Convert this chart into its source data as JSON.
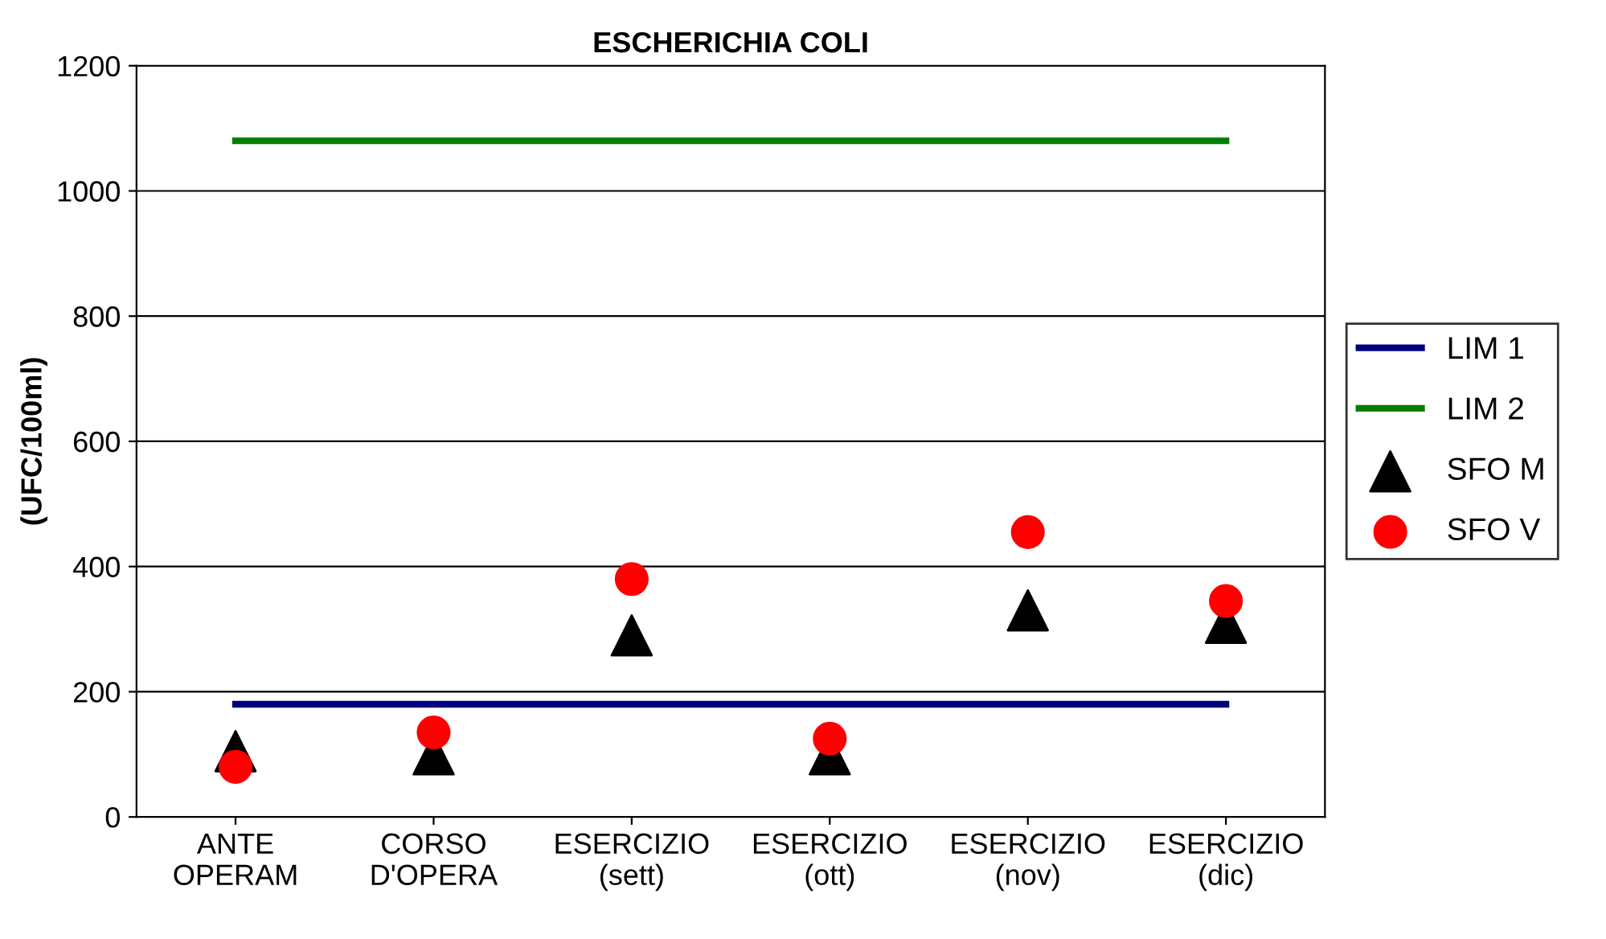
{
  "chart_data": {
    "type": "scatter",
    "title": "ESCHERICHIA COLI",
    "ylabel": "(UFC/100ml)",
    "categories": [
      "ANTE\nOPERAM",
      "CORSO\nD'OPERA",
      "ESERCIZIO\n(sett)",
      "ESERCIZIO\n(ott)",
      "ESERCIZIO\n(nov)",
      "ESERCIZIO\n(dic)"
    ],
    "series": [
      {
        "name": "LIM 1",
        "type": "line",
        "color": "#000080",
        "values": [
          180,
          180,
          180,
          180,
          180,
          180
        ]
      },
      {
        "name": "LIM 2",
        "type": "line",
        "color": "#008000",
        "values": [
          1080,
          1080,
          1080,
          1080,
          1080,
          1080
        ]
      },
      {
        "name": "SFO M",
        "marker": "triangle",
        "color": "#000000",
        "values": [
          105,
          100,
          290,
          100,
          330,
          310
        ]
      },
      {
        "name": "SFO V",
        "marker": "circle",
        "color": "#ff0000",
        "values": [
          80,
          135,
          380,
          125,
          455,
          345
        ]
      }
    ],
    "ylim": [
      0,
      1200
    ],
    "yticks": [
      0,
      200,
      400,
      600,
      800,
      1000,
      1200
    ],
    "grid": "y",
    "legend": "right"
  }
}
